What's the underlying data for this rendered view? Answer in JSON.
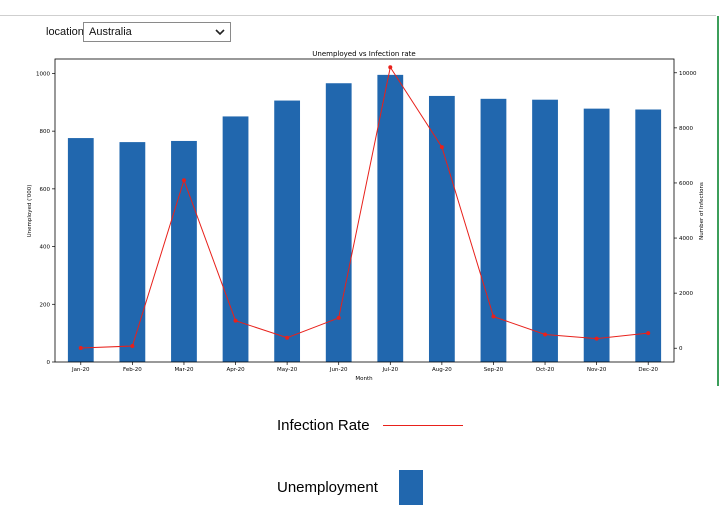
{
  "location": {
    "label": "location",
    "selected": "Australia"
  },
  "colors": {
    "bar": "#2167ae",
    "line": "#e8211b",
    "axis": "#000000"
  },
  "chart_data": {
    "type": "bar",
    "title": "Unemployed vs Infection rate",
    "xlabel": "Month",
    "ylabel": "Unemployed ('000)",
    "y2label": "Number of Infections",
    "ylim": [
      0,
      1050
    ],
    "y2lim": [
      -500,
      10500
    ],
    "yticks": [
      0,
      200,
      400,
      600,
      800,
      1000
    ],
    "y2ticks": [
      0,
      2000,
      4000,
      6000,
      8000,
      10000
    ],
    "categories": [
      "Jan-20",
      "Feb-20",
      "Mar-20",
      "Apr-20",
      "May-20",
      "Jun-20",
      "Jul-20",
      "Aug-20",
      "Sep-20",
      "Oct-20",
      "Nov-20",
      "Dec-20"
    ],
    "series": [
      {
        "name": "Unemployment",
        "type": "bar",
        "axis": "left",
        "values": [
          776,
          762,
          766,
          851,
          906,
          966,
          995,
          922,
          912,
          909,
          878,
          875
        ]
      },
      {
        "name": "Infection Rate",
        "type": "line",
        "axis": "right",
        "values": [
          10,
          80,
          6100,
          1000,
          380,
          1100,
          10200,
          7300,
          1150,
          500,
          350,
          550
        ]
      }
    ],
    "legend": {
      "items": [
        {
          "label": "Infection Rate",
          "kind": "line"
        },
        {
          "label": "Unemployment",
          "kind": "bar"
        }
      ]
    }
  }
}
